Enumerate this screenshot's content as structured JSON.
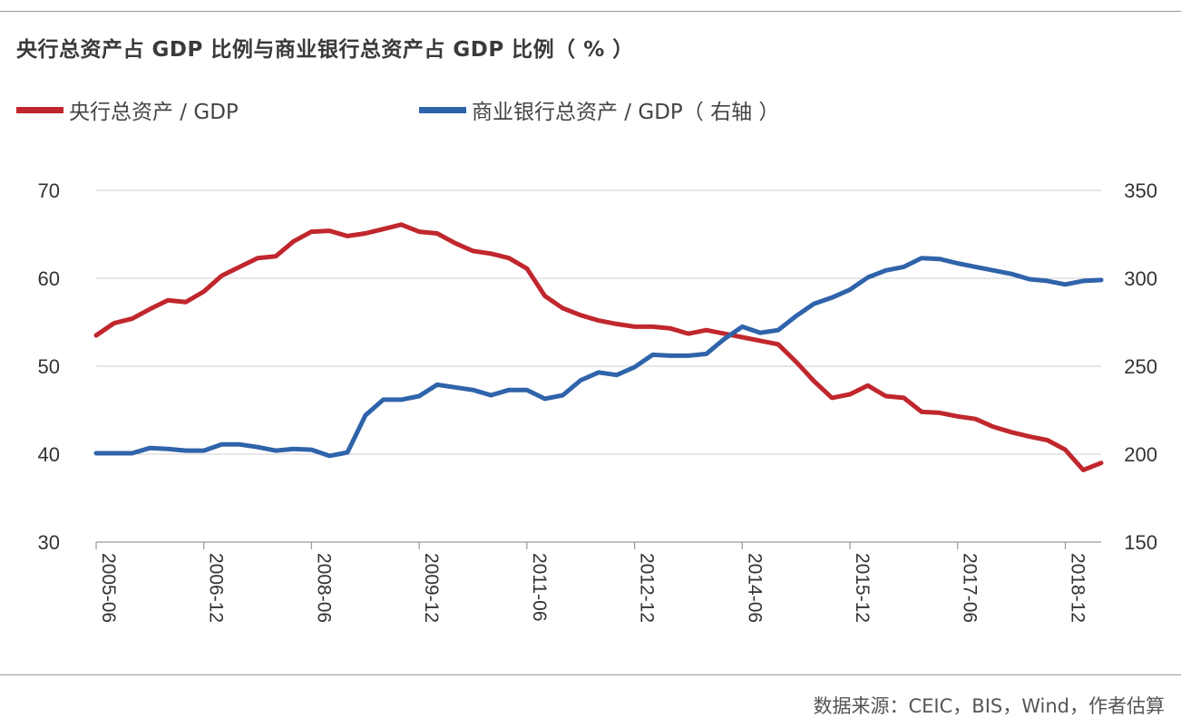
{
  "chart_data": {
    "type": "line",
    "title": "央行总资产占 GDP 比例与商业银行总资产占 GDP 比例（ % ）",
    "legend": [
      "央行总资产 / GDP",
      "商业银行总资产 / GDP（ 右轴 ）"
    ],
    "legend_position": "top-left",
    "source": "数据来源：CEIC，BIS，Wind，作者估算",
    "x_tick_labels": [
      "2005-06",
      "2006-12",
      "2008-06",
      "2009-12",
      "2011-06",
      "2012-12",
      "2014-06",
      "2015-12",
      "2017-06",
      "2018-12"
    ],
    "x_tick_positions": [
      2005.5,
      2007.0,
      2008.5,
      2010.0,
      2011.5,
      2013.0,
      2014.5,
      2016.0,
      2017.5,
      2019.0
    ],
    "xlim": [
      2005.5,
      2019.5
    ],
    "left_axis": {
      "ticks": [
        30,
        40,
        50,
        60,
        70
      ],
      "ylim": [
        30,
        70
      ]
    },
    "right_axis": {
      "ticks": [
        150,
        200,
        250,
        300,
        350
      ],
      "ylim": [
        150,
        350
      ]
    },
    "grid": "horizontal",
    "series": [
      {
        "name": "央行总资产 / GDP",
        "axis": "left",
        "color": "#c0272d",
        "x": [
          2005.5,
          2005.75,
          2006.0,
          2006.25,
          2006.5,
          2006.75,
          2007.0,
          2007.25,
          2007.5,
          2007.75,
          2008.0,
          2008.25,
          2008.5,
          2008.75,
          2009.0,
          2009.25,
          2009.5,
          2009.75,
          2010.0,
          2010.25,
          2010.5,
          2010.75,
          2011.0,
          2011.25,
          2011.5,
          2011.75,
          2012.0,
          2012.25,
          2012.5,
          2012.75,
          2013.0,
          2013.25,
          2013.5,
          2013.75,
          2014.0,
          2014.25,
          2014.5,
          2014.75,
          2015.0,
          2015.25,
          2015.5,
          2015.75,
          2016.0,
          2016.25,
          2016.5,
          2016.75,
          2017.0,
          2017.25,
          2017.5,
          2017.75,
          2018.0,
          2018.25,
          2018.5,
          2018.75,
          2019.0,
          2019.25,
          2019.5
        ],
        "values": [
          53.5,
          54.9,
          55.4,
          56.5,
          57.5,
          57.3,
          58.5,
          60.3,
          61.3,
          62.3,
          62.5,
          64.2,
          65.3,
          65.4,
          64.8,
          65.1,
          65.6,
          66.1,
          65.3,
          65.1,
          64.0,
          63.1,
          62.8,
          62.3,
          61.1,
          58.0,
          56.6,
          55.8,
          55.2,
          54.8,
          54.5,
          54.5,
          54.3,
          53.7,
          54.1,
          53.7,
          53.3,
          52.9,
          52.5,
          50.5,
          48.3,
          46.4,
          46.8,
          47.8,
          46.6,
          46.4,
          44.8,
          44.7,
          44.3,
          44.0,
          43.1,
          42.5,
          42.0,
          41.6,
          40.5,
          38.2,
          39.0
        ]
      },
      {
        "name": "商业银行总资产 / GDP（ 右轴 ）",
        "axis": "right",
        "color": "#2f63aa",
        "x": [
          2005.5,
          2005.75,
          2006.0,
          2006.25,
          2006.5,
          2006.75,
          2007.0,
          2007.25,
          2007.5,
          2007.75,
          2008.0,
          2008.25,
          2008.5,
          2008.75,
          2009.0,
          2009.25,
          2009.5,
          2009.75,
          2010.0,
          2010.25,
          2010.5,
          2010.75,
          2011.0,
          2011.25,
          2011.5,
          2011.75,
          2012.0,
          2012.25,
          2012.5,
          2012.75,
          2013.0,
          2013.25,
          2013.5,
          2013.75,
          2014.0,
          2014.25,
          2014.5,
          2014.75,
          2015.0,
          2015.25,
          2015.5,
          2015.75,
          2016.0,
          2016.25,
          2016.5,
          2016.75,
          2017.0,
          2017.25,
          2017.5,
          2017.75,
          2018.0,
          2018.25,
          2018.5,
          2018.75,
          2019.0,
          2019.25,
          2019.5
        ],
        "values": [
          200.5,
          200.5,
          200.5,
          203.5,
          203.0,
          202.0,
          202.0,
          205.5,
          205.5,
          204.0,
          202.0,
          203.0,
          202.5,
          199.0,
          201.0,
          222.0,
          231.0,
          231.0,
          233.0,
          239.5,
          238.0,
          236.5,
          233.5,
          236.5,
          236.5,
          231.5,
          233.5,
          242.0,
          246.5,
          245.0,
          249.5,
          256.5,
          256.0,
          256.0,
          257.0,
          265.5,
          272.5,
          269.0,
          270.5,
          278.5,
          285.5,
          289.0,
          293.5,
          300.5,
          304.5,
          306.5,
          311.5,
          311.0,
          308.5,
          306.5,
          304.5,
          302.5,
          299.5,
          298.5,
          296.5,
          298.5,
          299.0
        ]
      }
    ]
  }
}
